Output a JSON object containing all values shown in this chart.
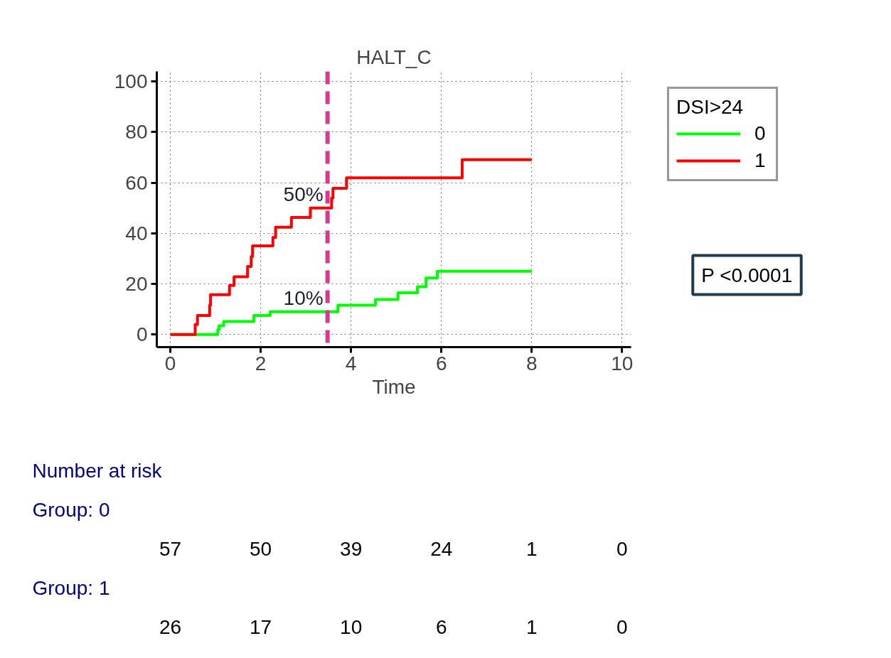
{
  "chart_data": {
    "type": "step",
    "title": "HALT_C",
    "xlabel": "Time",
    "legend_title": "DSI>24",
    "xlim": [
      -0.3,
      10.2
    ],
    "ylim": [
      -5,
      104
    ],
    "xticks": [
      0,
      2,
      4,
      6,
      8,
      10
    ],
    "yticks": [
      0,
      20,
      40,
      60,
      80,
      100
    ],
    "grid": true,
    "legend": "right",
    "marker": "none",
    "line_style": "solid",
    "series": [
      {
        "name": "0",
        "color": "#00ff00",
        "x": [
          0,
          1.05,
          1.08,
          1.18,
          1.85,
          2.21,
          3.71,
          4.54,
          5.04,
          5.47,
          5.66,
          5.91,
          8.0
        ],
        "values": [
          0,
          1.9,
          3.4,
          5.1,
          7.5,
          9.0,
          11.6,
          13.8,
          16.5,
          18.9,
          22.3,
          25.0,
          25.0
        ]
      },
      {
        "name": "1",
        "color": "#ff0000",
        "x": [
          0,
          0.55,
          0.6,
          0.87,
          0.89,
          1.31,
          1.41,
          1.71,
          1.79,
          1.82,
          2.27,
          2.33,
          2.68,
          3.1,
          3.57,
          3.6,
          3.9,
          6.46,
          8.0
        ],
        "values": [
          0,
          3.9,
          7.5,
          11.6,
          15.7,
          19.4,
          22.8,
          26.9,
          30.8,
          35.0,
          38.3,
          42.4,
          46.3,
          50.0,
          53.9,
          57.8,
          61.9,
          69.1,
          69.1
        ]
      }
    ],
    "ref_lines": [
      {
        "axis": "x",
        "value": 3.48,
        "color": "#d63a8c",
        "line_style": "dashed"
      }
    ],
    "annotations": [
      {
        "text": "50%",
        "x": 3.48,
        "y": 50
      },
      {
        "text": "10%",
        "x": 3.48,
        "y": 9.0
      },
      "P <0.0001",
      "Number at risk",
      "Group: 0",
      "57 50 39 24 1 0",
      "Group: 1",
      "26 17 10 6 1 0"
    ]
  }
}
